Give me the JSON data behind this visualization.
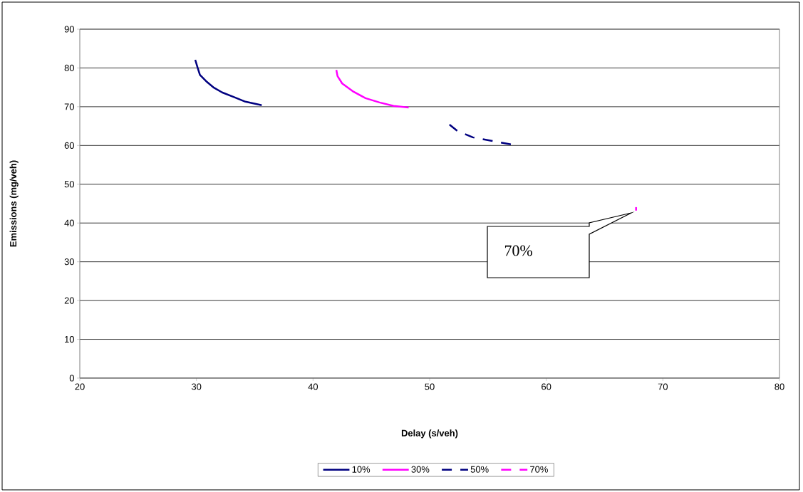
{
  "chart_data": {
    "type": "line",
    "xlabel": "Delay (s/veh)",
    "ylabel": "Emissions (mg/veh)",
    "xlim": [
      20,
      80
    ],
    "xticks": [
      20,
      30,
      40,
      50,
      60,
      70,
      80
    ],
    "ylim": [
      0,
      90
    ],
    "yticks": [
      0,
      10,
      20,
      30,
      40,
      50,
      60,
      70,
      80,
      90
    ],
    "grid": "y",
    "legend": "bottom",
    "annotations": [
      "70%"
    ],
    "series": [
      {
        "name": "10%",
        "color": "#000080",
        "line_style": "solid",
        "x": [
          29.9,
          30.1,
          30.3,
          30.9,
          31.5,
          32.2,
          33.3,
          34.2,
          35.6
        ],
        "values": [
          82.1,
          80.1,
          78.2,
          76.4,
          74.9,
          73.7,
          72.4,
          71.3,
          70.4
        ]
      },
      {
        "name": "30%",
        "color": "#ff00ff",
        "line_style": "solid",
        "x": [
          42.0,
          42.1,
          42.5,
          43.4,
          44.5,
          45.7,
          46.9,
          48.2
        ],
        "values": [
          79.5,
          77.9,
          76.0,
          74.0,
          72.2,
          71.1,
          70.2,
          69.8
        ]
      },
      {
        "name": "50%",
        "color": "#000080",
        "line_style": "dashed",
        "x": [
          51.7,
          52.4,
          53.7,
          55.3,
          57.1
        ],
        "values": [
          65.4,
          63.7,
          62.1,
          61.2,
          60.2
        ]
      },
      {
        "name": "70%",
        "color": "#ff00ff",
        "line_style": "dashed",
        "x": [
          67.7,
          67.7
        ],
        "values": [
          44.1,
          43.2
        ]
      }
    ]
  }
}
